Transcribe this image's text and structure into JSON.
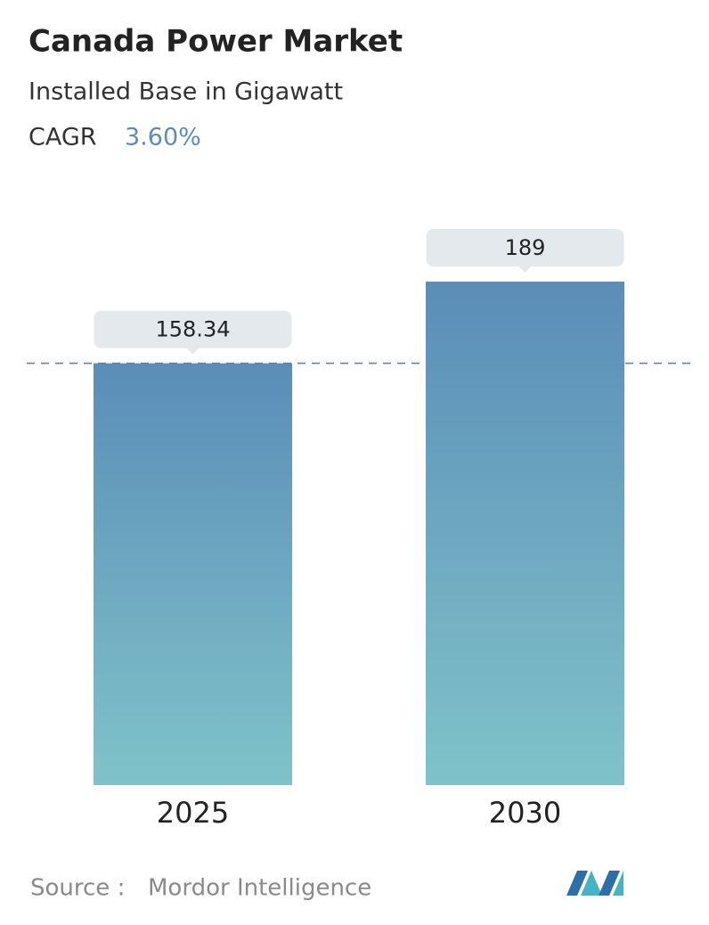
{
  "chart_data": {
    "type": "bar",
    "title": "Canada Power Market",
    "subtitle": "Installed Base in Gigawatt",
    "cagr_label": "CAGR",
    "cagr_value": "3.60%",
    "categories": [
      "2025",
      "2030"
    ],
    "values": [
      158.34,
      189
    ],
    "color": [
      "#5b8db8",
      "#7fc3c9"
    ],
    "source_label": "Source :",
    "source": "Mordor Intelligence"
  }
}
